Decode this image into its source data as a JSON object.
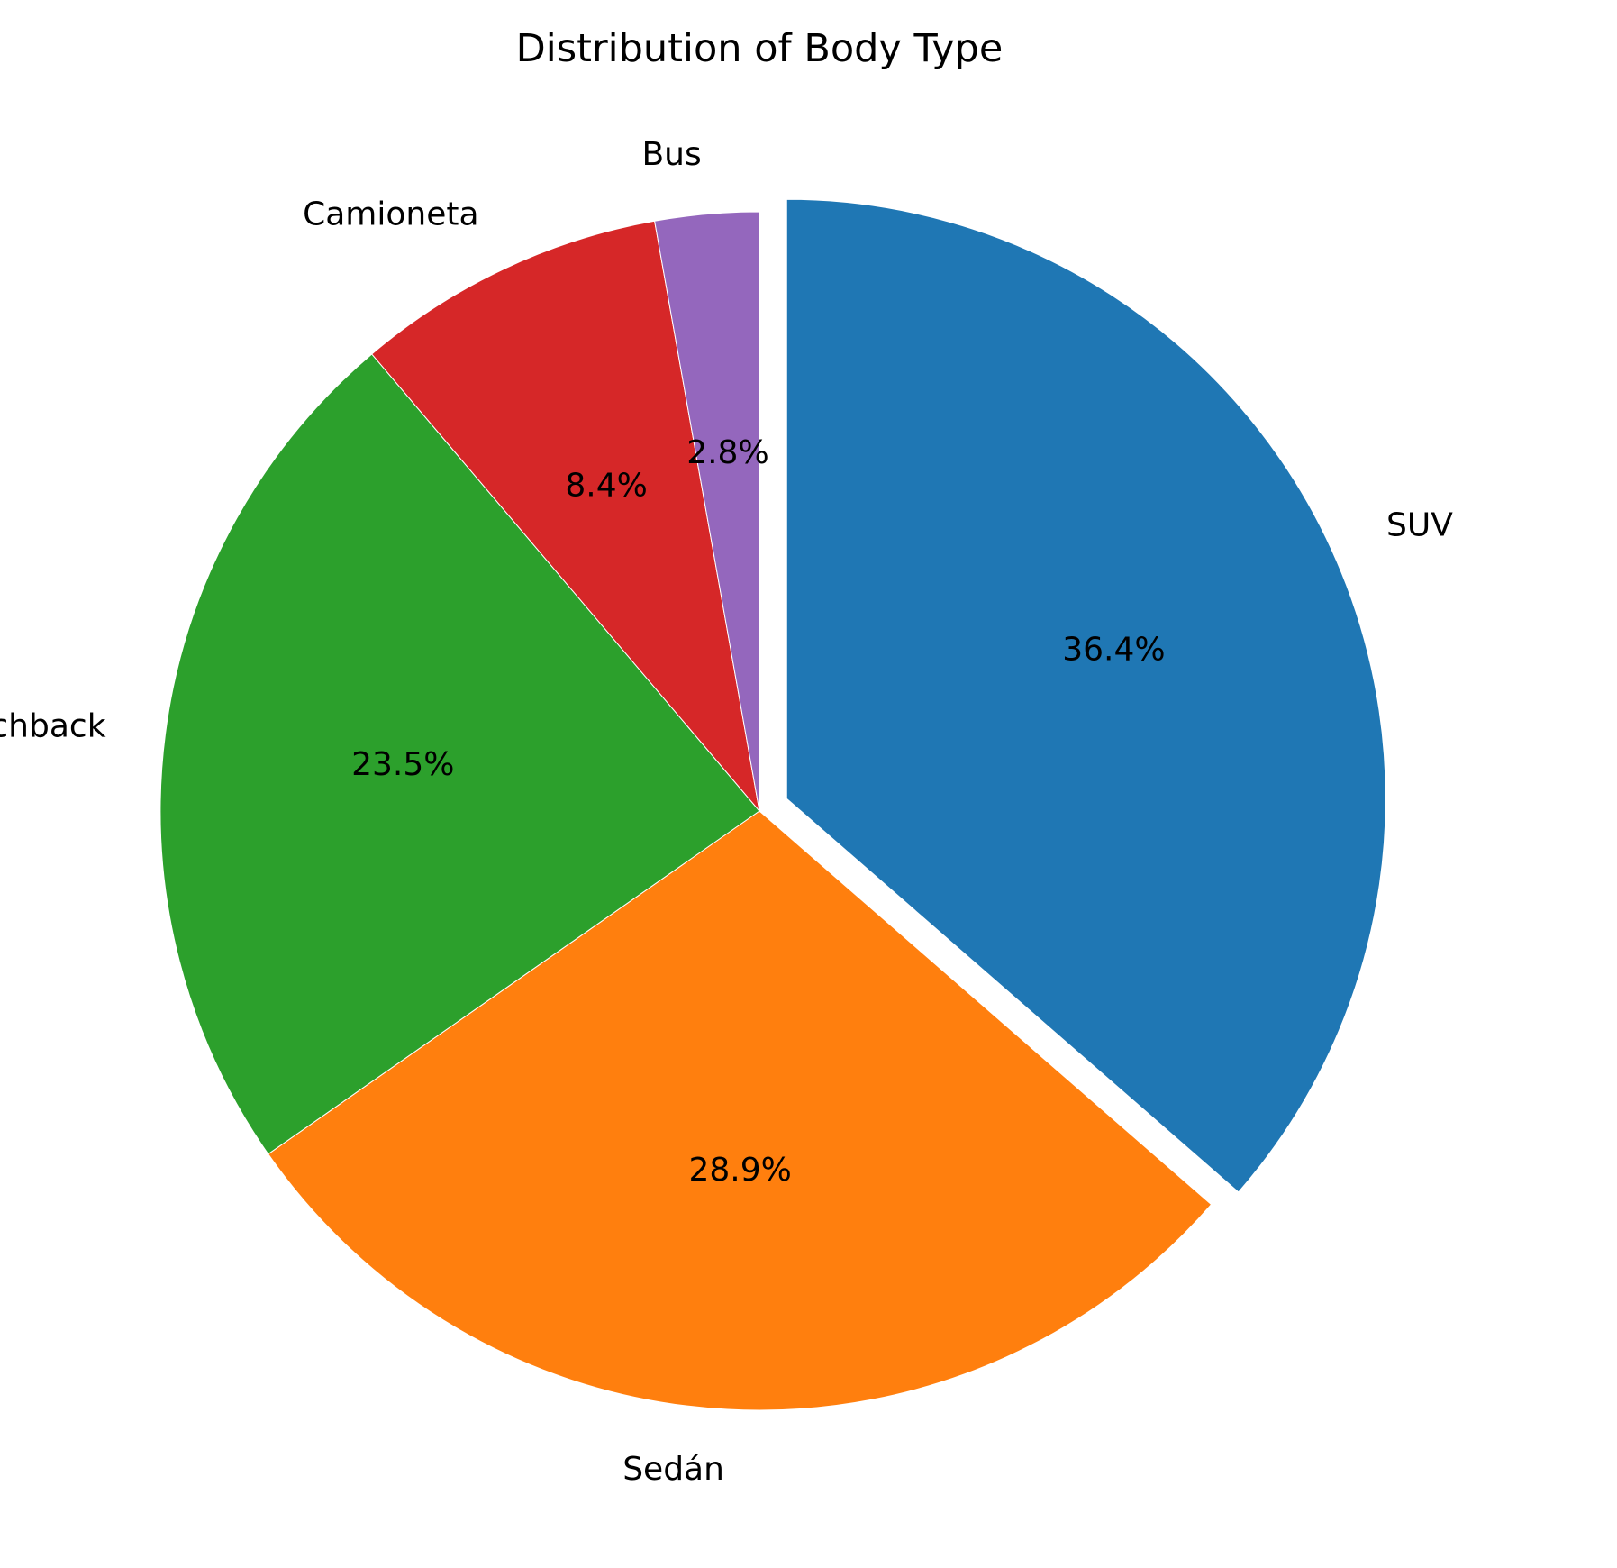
{
  "chart_data": {
    "type": "pie",
    "title": "Distribution of Body Type",
    "start_angle_deg": 90,
    "direction": "clockwise",
    "slices": [
      {
        "label": "SUV",
        "value": 36.4,
        "pct_label": "36.4%",
        "color": "#1f77b4",
        "exploded": true
      },
      {
        "label": "Sedán",
        "value": 28.9,
        "pct_label": "28.9%",
        "color": "#ff7f0e",
        "exploded": false
      },
      {
        "label": "Hatchback",
        "value": 23.5,
        "pct_label": "23.5%",
        "color": "#2ca02c",
        "exploded": false
      },
      {
        "label": "Camioneta",
        "value": 8.4,
        "pct_label": "8.4%",
        "color": "#d62728",
        "exploded": false
      },
      {
        "label": "Bus",
        "value": 2.8,
        "pct_label": "2.8%",
        "color": "#9467bd",
        "exploded": false
      }
    ]
  }
}
